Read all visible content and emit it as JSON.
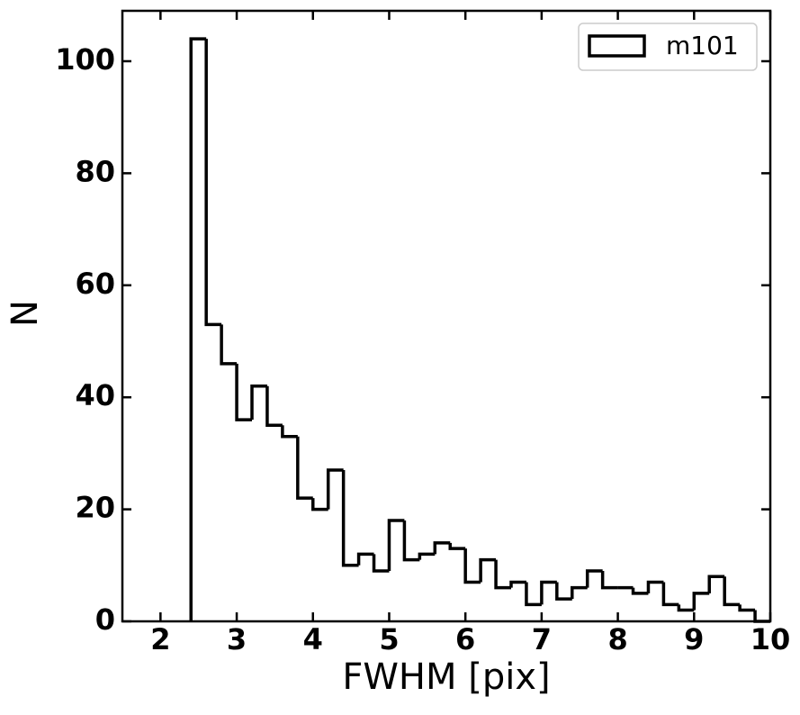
{
  "chart_data": {
    "type": "histogram",
    "xlabel": "FWHM [pix]",
    "ylabel": "N",
    "bins": [
      2.4,
      2.6,
      2.8,
      3.0,
      3.2,
      3.4,
      3.6,
      3.8,
      4.0,
      4.2,
      4.4,
      4.6,
      4.8,
      5.0,
      5.2,
      5.4,
      5.6,
      5.8,
      6.0,
      6.2,
      6.4,
      6.6,
      6.8,
      7.0,
      7.2,
      7.4,
      7.6,
      7.8,
      8.0,
      8.2,
      8.4,
      8.6,
      8.8,
      9.0,
      9.2,
      9.4,
      9.6,
      9.8,
      10.0
    ],
    "series": [
      {
        "name": "m101",
        "color": "#000000",
        "values": [
          104,
          53,
          46,
          36,
          42,
          35,
          33,
          22,
          20,
          27,
          10,
          12,
          9,
          18,
          11,
          12,
          14,
          13,
          7,
          11,
          6,
          7,
          3,
          7,
          4,
          6,
          9,
          6,
          6,
          5,
          7,
          3,
          2,
          5,
          8,
          3,
          2,
          0
        ]
      }
    ],
    "xlim": [
      1.5,
      10
    ],
    "ylim": [
      0,
      109
    ],
    "xticks": [
      2,
      3,
      4,
      5,
      6,
      7,
      8,
      9,
      10
    ],
    "yticks": [
      0,
      20,
      40,
      60,
      80,
      100
    ],
    "legend": "upper right"
  }
}
